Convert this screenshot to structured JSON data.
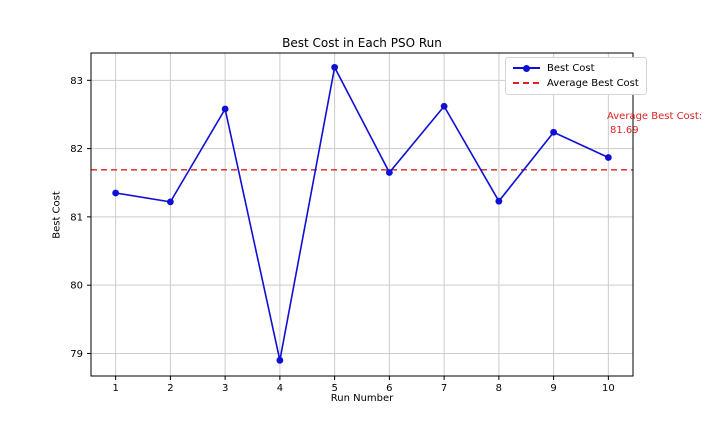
{
  "chart_data": {
    "type": "line",
    "title": "Best Cost in Each PSO Run",
    "xlabel": "Run Number",
    "ylabel": "Best Cost",
    "x": [
      1,
      2,
      3,
      4,
      5,
      6,
      7,
      8,
      9,
      10
    ],
    "series": [
      {
        "name": "Best Cost",
        "values": [
          81.35,
          81.22,
          82.58,
          78.9,
          83.19,
          81.65,
          82.62,
          81.23,
          82.24,
          81.87
        ],
        "color": "#0f0fd6",
        "marker": "o",
        "linestyle": "solid"
      }
    ],
    "average_line": {
      "name": "Average Best Cost",
      "value": 81.69,
      "color": "#dd2222",
      "linestyle": "dashed"
    },
    "annotation_lines": [
      "Average Best Cost:",
      "81.69"
    ],
    "annotation_color": "#dd2222",
    "xticks": [
      1,
      2,
      3,
      4,
      5,
      6,
      7,
      8,
      9,
      10
    ],
    "yticks": [
      79,
      80,
      81,
      82,
      83
    ],
    "xlim": [
      0.55,
      10.45
    ],
    "ylim": [
      78.67,
      83.4
    ],
    "grid": true,
    "grid_color": "#cccccc",
    "spine_color": "#000000",
    "legend_position": "upper right"
  }
}
